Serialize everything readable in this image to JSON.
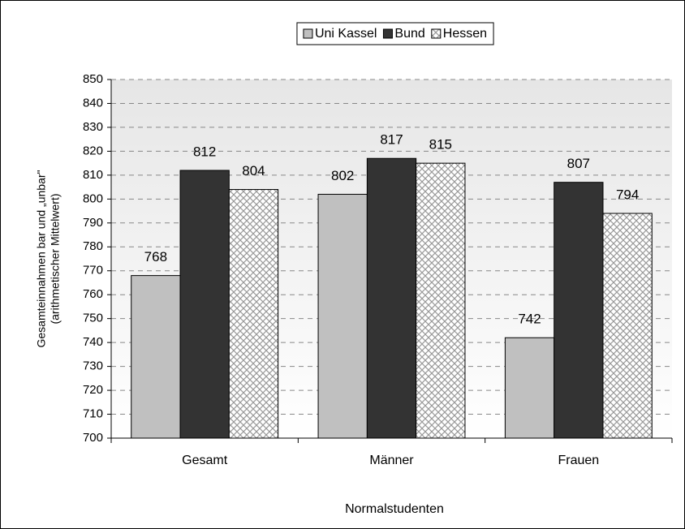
{
  "chart_data": {
    "type": "bar",
    "x_label": "Normalstudenten",
    "y_label": [
      "Gesamteinnahmen bar und „unbar\"",
      "(arithmetischer Mittelwert)"
    ],
    "categories": [
      "Gesamt",
      "Männer",
      "Frauen"
    ],
    "series": [
      {
        "name": "Uni Kassel",
        "color": "#c0c0c0",
        "values": [
          768,
          802,
          742
        ]
      },
      {
        "name": "Bund",
        "color": "#333333",
        "values": [
          812,
          817,
          807
        ]
      },
      {
        "name": "Hessen",
        "color": "#ffffff",
        "hatch": true,
        "values": [
          804,
          815,
          794
        ]
      }
    ],
    "ylim": [
      700,
      850
    ],
    "yticks": [
      700,
      710,
      720,
      730,
      740,
      750,
      760,
      770,
      780,
      790,
      800,
      810,
      820,
      830,
      840,
      850
    ],
    "grid": true,
    "legend": "top"
  }
}
